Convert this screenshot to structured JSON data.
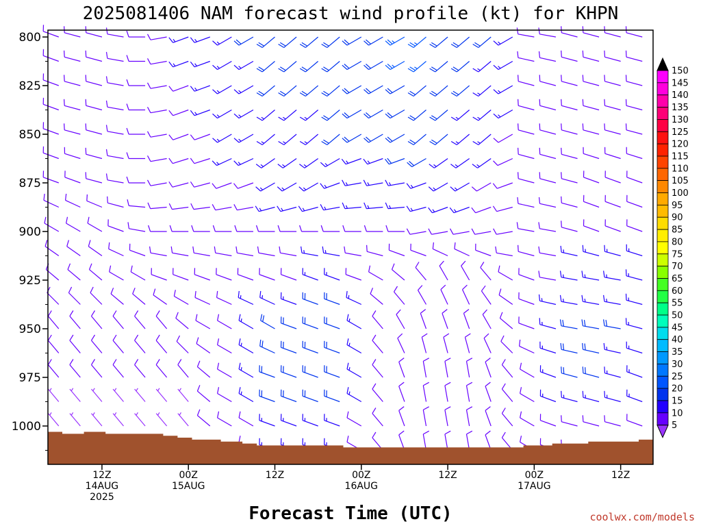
{
  "title": "2025081406 NAM forecast wind profile (kt) for KHPN",
  "credit": "coolwx.com/models",
  "chart_data": {
    "type": "wind-barb-profile",
    "title": "2025081406 NAM forecast wind profile (kt) for KHPN",
    "xlabel": "Forecast Time (UTC)",
    "ylabel": "",
    "y_ticks": [
      "800",
      "825",
      "850",
      "875",
      "900",
      "925",
      "950",
      "975",
      "1000"
    ],
    "y_range_hpa": [
      800,
      1020
    ],
    "x_range_hours": [
      -1.5,
      82.5
    ],
    "x_ticks": [
      {
        "hour": 6,
        "lines": [
          "12Z",
          "14AUG",
          "2025"
        ]
      },
      {
        "hour": 18,
        "lines": [
          "00Z",
          "15AUG"
        ]
      },
      {
        "hour": 30,
        "lines": [
          "12Z"
        ]
      },
      {
        "hour": 42,
        "lines": [
          "00Z",
          "16AUG"
        ]
      },
      {
        "hour": 54,
        "lines": [
          "12Z"
        ]
      },
      {
        "hour": 66,
        "lines": [
          "00Z",
          "17AUG"
        ]
      },
      {
        "hour": 78,
        "lines": [
          "12Z"
        ]
      }
    ],
    "units": "kt",
    "colorbar": {
      "labels": [
        "150",
        "145",
        "140",
        "135",
        "130",
        "125",
        "120",
        "115",
        "110",
        "105",
        "100",
        "95",
        "90",
        "85",
        "80",
        "75",
        "70",
        "65",
        "60",
        "55",
        "50",
        "45",
        "40",
        "35",
        "30",
        "25",
        "20",
        "15",
        "10",
        "5"
      ],
      "colors": [
        "#ff00ff",
        "#ff00dd",
        "#ff00aa",
        "#ff0077",
        "#ff0044",
        "#ff1111",
        "#ff2200",
        "#ff4400",
        "#ff6600",
        "#ff8800",
        "#ffaa00",
        "#ffbb00",
        "#ffdd00",
        "#ffee00",
        "#ffff00",
        "#ccff00",
        "#88ff00",
        "#44ff22",
        "#22ff44",
        "#00ff88",
        "#00ffbb",
        "#00ddee",
        "#00bbff",
        "#0099ff",
        "#0077ff",
        "#0055ff",
        "#0033ee",
        "#2200ff",
        "#6600ff",
        "#9933ff"
      ]
    },
    "terrain_color": "#a0522d",
    "surface_pressure_hpa": [
      1003,
      1003,
      1004,
      1004,
      1004,
      1003,
      1003,
      1003,
      1004,
      1004,
      1004,
      1004,
      1004,
      1004,
      1004,
      1004,
      1005,
      1005,
      1006,
      1006,
      1007,
      1007,
      1007,
      1007,
      1008,
      1008,
      1008,
      1009,
      1009,
      1010,
      1010,
      1010,
      1010,
      1010,
      1010,
      1010,
      1010,
      1010,
      1010,
      1010,
      1010,
      1011,
      1011,
      1011,
      1011,
      1011,
      1011,
      1011,
      1011,
      1011,
      1011,
      1011,
      1011,
      1011,
      1011,
      1011,
      1011,
      1011,
      1011,
      1011,
      1011,
      1011,
      1011,
      1011,
      1011,
      1011,
      1010,
      1010,
      1010,
      1010,
      1009,
      1009,
      1009,
      1009,
      1009,
      1008,
      1008,
      1008,
      1008,
      1008,
      1008,
      1008,
      1007,
      1007
    ],
    "barb_levels_hpa": [
      800,
      812.5,
      825,
      837.5,
      850,
      862.5,
      875,
      887.5,
      900,
      912.5,
      925,
      937.5,
      950,
      962.5,
      975,
      987.5,
      1000,
      1012.5
    ],
    "barb_times_hours": [
      0,
      3,
      6,
      9,
      12,
      15,
      18,
      21,
      24,
      27,
      30,
      33,
      36,
      39,
      42,
      45,
      48,
      51,
      54,
      57,
      60,
      63,
      66,
      69,
      72,
      75,
      78,
      81
    ],
    "series": [
      {
        "level_hpa": 800,
        "dir_deg": [
          290,
          285,
          285,
          280,
          270,
          260,
          250,
          250,
          240,
          240,
          230,
          230,
          230,
          230,
          240,
          240,
          240,
          230,
          230,
          230,
          230,
          240,
          280,
          280,
          285,
          285,
          285,
          285
        ],
        "speed_kt": [
          10,
          10,
          10,
          10,
          12,
          12,
          15,
          15,
          15,
          18,
          18,
          20,
          20,
          22,
          22,
          22,
          25,
          25,
          22,
          20,
          18,
          15,
          12,
          12,
          12,
          12,
          12,
          12
        ]
      },
      {
        "level_hpa": 825,
        "dir_deg": [
          290,
          285,
          285,
          280,
          270,
          260,
          250,
          250,
          240,
          240,
          230,
          230,
          230,
          230,
          240,
          240,
          240,
          230,
          230,
          230,
          230,
          240,
          285,
          285,
          285,
          285,
          285,
          285
        ],
        "speed_kt": [
          10,
          10,
          10,
          10,
          12,
          12,
          12,
          15,
          15,
          15,
          18,
          18,
          18,
          20,
          20,
          20,
          22,
          22,
          20,
          18,
          15,
          15,
          12,
          12,
          12,
          12,
          12,
          12
        ]
      },
      {
        "level_hpa": 850,
        "dir_deg": [
          290,
          285,
          285,
          280,
          270,
          260,
          250,
          250,
          240,
          240,
          230,
          230,
          230,
          230,
          240,
          240,
          240,
          230,
          230,
          230,
          230,
          240,
          285,
          285,
          285,
          285,
          285,
          285
        ],
        "speed_kt": [
          10,
          10,
          10,
          10,
          10,
          12,
          12,
          12,
          15,
          15,
          15,
          15,
          15,
          18,
          18,
          18,
          20,
          20,
          18,
          15,
          15,
          12,
          12,
          12,
          12,
          12,
          12,
          12
        ]
      },
      {
        "level_hpa": 875,
        "dir_deg": [
          290,
          290,
          285,
          280,
          270,
          260,
          255,
          255,
          250,
          250,
          240,
          240,
          240,
          250,
          260,
          260,
          260,
          250,
          240,
          240,
          240,
          250,
          285,
          285,
          285,
          290,
          290,
          290
        ],
        "speed_kt": [
          10,
          10,
          10,
          10,
          10,
          10,
          12,
          12,
          12,
          12,
          15,
          15,
          15,
          15,
          15,
          15,
          15,
          15,
          15,
          15,
          12,
          12,
          12,
          12,
          12,
          12,
          12,
          12
        ]
      },
      {
        "level_hpa": 900,
        "dir_deg": [
          300,
          300,
          300,
          290,
          280,
          270,
          270,
          270,
          270,
          270,
          270,
          270,
          270,
          270,
          270,
          270,
          270,
          260,
          260,
          260,
          260,
          260,
          280,
          280,
          285,
          290,
          290,
          290
        ],
        "speed_kt": [
          10,
          10,
          10,
          10,
          10,
          10,
          10,
          12,
          12,
          12,
          12,
          12,
          12,
          12,
          12,
          10,
          10,
          10,
          10,
          10,
          10,
          10,
          12,
          12,
          12,
          12,
          12,
          12
        ]
      },
      {
        "level_hpa": 925,
        "dir_deg": [
          310,
          310,
          310,
          300,
          300,
          290,
          290,
          290,
          290,
          290,
          290,
          290,
          290,
          290,
          290,
          300,
          310,
          320,
          330,
          330,
          320,
          300,
          290,
          280,
          280,
          280,
          280,
          285
        ],
        "speed_kt": [
          8,
          8,
          8,
          8,
          10,
          10,
          10,
          10,
          12,
          12,
          12,
          12,
          15,
          15,
          12,
          10,
          8,
          8,
          8,
          8,
          10,
          10,
          12,
          12,
          15,
          15,
          15,
          15
        ]
      },
      {
        "level_hpa": 950,
        "dir_deg": [
          320,
          320,
          320,
          320,
          320,
          320,
          310,
          300,
          300,
          300,
          300,
          290,
          290,
          290,
          300,
          320,
          330,
          340,
          340,
          340,
          330,
          310,
          290,
          285,
          280,
          280,
          280,
          285
        ],
        "speed_kt": [
          8,
          8,
          8,
          8,
          8,
          8,
          8,
          10,
          12,
          15,
          18,
          20,
          22,
          20,
          15,
          10,
          8,
          8,
          8,
          8,
          8,
          10,
          12,
          15,
          18,
          18,
          18,
          15
        ]
      },
      {
        "level_hpa": 975,
        "dir_deg": [
          320,
          320,
          320,
          320,
          320,
          320,
          320,
          310,
          300,
          300,
          290,
          290,
          290,
          290,
          300,
          320,
          340,
          350,
          350,
          350,
          340,
          320,
          300,
          290,
          285,
          285,
          285,
          290
        ],
        "speed_kt": [
          8,
          8,
          8,
          8,
          8,
          8,
          8,
          10,
          12,
          15,
          20,
          22,
          22,
          20,
          15,
          10,
          8,
          8,
          8,
          8,
          8,
          10,
          12,
          15,
          18,
          18,
          15,
          15
        ]
      },
      {
        "level_hpa": 1000,
        "dir_deg": [
          320,
          320,
          320,
          320,
          320,
          320,
          320,
          310,
          300,
          300,
          290,
          290,
          290,
          290,
          300,
          320,
          340,
          350,
          350,
          350,
          340,
          320,
          300,
          290,
          285,
          285,
          285,
          290
        ],
        "speed_kt": [
          6,
          6,
          6,
          6,
          6,
          6,
          6,
          8,
          10,
          12,
          15,
          15,
          15,
          15,
          12,
          10,
          8,
          8,
          8,
          8,
          8,
          8,
          10,
          12,
          12,
          12,
          12,
          12
        ]
      }
    ]
  }
}
